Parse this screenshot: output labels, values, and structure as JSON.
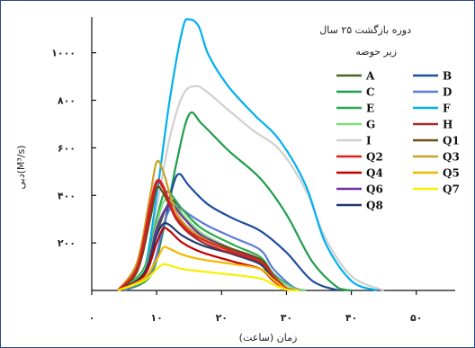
{
  "chart_data": {
    "type": "line",
    "title": "دوره بازگشت ۲۵ سال",
    "legend_title": "زیر حوضه",
    "xlabel": "زمان (ساعت)",
    "ylabel": "دبی(M³/s)",
    "xlim": [
      0,
      56
    ],
    "ylim": [
      0,
      1150
    ],
    "x_ticks": [
      0,
      10,
      20,
      30,
      40,
      50
    ],
    "x_tick_labels": [
      "۰",
      "۱۰",
      "۲۰",
      "۳۰",
      "۴۰",
      "۵۰"
    ],
    "y_ticks": [
      200,
      400,
      600,
      800,
      1000
    ],
    "y_tick_labels": [
      "۲۰۰",
      "۴۰۰",
      "۶۰۰",
      "۸۰۰",
      "۱۰۰۰"
    ],
    "grid": false,
    "legend_position": "top-right",
    "series": [
      {
        "name": "A",
        "color": "#4f6228",
        "points": [
          [
            4,
            0
          ],
          [
            8,
            70
          ],
          [
            10,
            240
          ],
          [
            11.5,
            350
          ],
          [
            12.5,
            380
          ],
          [
            14,
            320
          ],
          [
            17,
            230
          ],
          [
            22,
            160
          ],
          [
            26,
            110
          ],
          [
            27.5,
            60
          ],
          [
            30,
            10
          ],
          [
            32,
            0
          ]
        ]
      },
      {
        "name": "B",
        "color": "#1f4e9c",
        "points": [
          [
            5,
            0
          ],
          [
            9,
            80
          ],
          [
            11,
            260
          ],
          [
            12.5,
            440
          ],
          [
            13.5,
            490
          ],
          [
            15,
            440
          ],
          [
            18,
            360
          ],
          [
            22,
            300
          ],
          [
            26,
            250
          ],
          [
            30,
            160
          ],
          [
            34,
            40
          ],
          [
            38,
            0
          ]
        ]
      },
      {
        "name": "C",
        "color": "#1e9e4a",
        "points": [
          [
            5,
            0
          ],
          [
            9,
            60
          ],
          [
            11,
            250
          ],
          [
            13,
            530
          ],
          [
            15,
            740
          ],
          [
            17,
            700
          ],
          [
            21,
            590
          ],
          [
            26,
            470
          ],
          [
            30,
            320
          ],
          [
            34,
            120
          ],
          [
            38,
            10
          ],
          [
            40,
            0
          ]
        ]
      },
      {
        "name": "D",
        "color": "#5b7bd5",
        "points": [
          [
            5,
            0
          ],
          [
            9,
            70
          ],
          [
            11,
            270
          ],
          [
            12,
            340
          ],
          [
            13,
            360
          ],
          [
            15,
            320
          ],
          [
            18,
            270
          ],
          [
            22,
            220
          ],
          [
            26,
            170
          ],
          [
            28,
            90
          ],
          [
            31,
            15
          ],
          [
            33,
            0
          ]
        ]
      },
      {
        "name": "E",
        "color": "#2fa84f",
        "points": [
          [
            4,
            0
          ],
          [
            8,
            90
          ],
          [
            10,
            300
          ],
          [
            11,
            400
          ],
          [
            12,
            410
          ],
          [
            14,
            340
          ],
          [
            17,
            260
          ],
          [
            22,
            190
          ],
          [
            26,
            140
          ],
          [
            28,
            70
          ],
          [
            31,
            10
          ],
          [
            33,
            0
          ]
        ]
      },
      {
        "name": "F",
        "color": "#00b0f0",
        "points": [
          [
            5,
            0
          ],
          [
            8,
            80
          ],
          [
            10,
            400
          ],
          [
            12,
            800
          ],
          [
            14,
            1100
          ],
          [
            15,
            1140
          ],
          [
            16.5,
            1110
          ],
          [
            18,
            990
          ],
          [
            21,
            860
          ],
          [
            25,
            740
          ],
          [
            29,
            630
          ],
          [
            33,
            440
          ],
          [
            36,
            200
          ],
          [
            40,
            40
          ],
          [
            44,
            0
          ]
        ]
      },
      {
        "name": "G",
        "color": "#7cdc7c",
        "points": [
          [
            4,
            0
          ],
          [
            8,
            80
          ],
          [
            10,
            280
          ],
          [
            11,
            370
          ],
          [
            12,
            380
          ],
          [
            14,
            320
          ],
          [
            17,
            240
          ],
          [
            22,
            170
          ],
          [
            26,
            125
          ],
          [
            28,
            60
          ],
          [
            31,
            10
          ],
          [
            33,
            0
          ]
        ]
      },
      {
        "name": "H",
        "color": "#a52a2a",
        "points": [
          [
            4,
            0
          ],
          [
            7,
            90
          ],
          [
            9,
            330
          ],
          [
            10,
            450
          ],
          [
            11,
            430
          ],
          [
            13,
            300
          ],
          [
            16,
            220
          ],
          [
            20,
            170
          ],
          [
            26,
            120
          ],
          [
            28,
            60
          ],
          [
            30,
            10
          ],
          [
            32,
            0
          ]
        ]
      },
      {
        "name": "I",
        "color": "#d0d0d0",
        "points": [
          [
            5,
            0
          ],
          [
            8,
            80
          ],
          [
            10,
            350
          ],
          [
            12,
            640
          ],
          [
            14,
            820
          ],
          [
            16,
            860
          ],
          [
            18,
            830
          ],
          [
            21,
            760
          ],
          [
            25,
            670
          ],
          [
            29,
            590
          ],
          [
            33,
            420
          ],
          [
            36,
            220
          ],
          [
            40,
            60
          ],
          [
            45,
            0
          ]
        ]
      },
      {
        "name": "Q1",
        "color": "#6b4e12",
        "points": [
          [
            4,
            0
          ],
          [
            7,
            80
          ],
          [
            9,
            300
          ],
          [
            10,
            430
          ],
          [
            11,
            410
          ],
          [
            13,
            310
          ],
          [
            16,
            230
          ],
          [
            21,
            180
          ],
          [
            26,
            130
          ],
          [
            28,
            60
          ],
          [
            30,
            10
          ],
          [
            32,
            0
          ]
        ]
      },
      {
        "name": "Q2",
        "color": "#e02020",
        "points": [
          [
            4,
            0
          ],
          [
            7,
            100
          ],
          [
            9,
            360
          ],
          [
            10,
            460
          ],
          [
            11,
            440
          ],
          [
            13,
            310
          ],
          [
            16,
            230
          ],
          [
            21,
            170
          ],
          [
            26,
            120
          ],
          [
            28,
            60
          ],
          [
            30,
            10
          ],
          [
            32,
            0
          ]
        ]
      },
      {
        "name": "Q3",
        "color": "#c9a227",
        "points": [
          [
            4,
            0
          ],
          [
            7,
            120
          ],
          [
            9,
            400
          ],
          [
            10,
            540
          ],
          [
            11,
            500
          ],
          [
            13,
            330
          ],
          [
            16,
            240
          ],
          [
            21,
            170
          ],
          [
            26,
            120
          ],
          [
            28,
            60
          ],
          [
            30,
            10
          ],
          [
            32,
            0
          ]
        ]
      },
      {
        "name": "Q4",
        "color": "#c00000",
        "points": [
          [
            4,
            0
          ],
          [
            8,
            60
          ],
          [
            10,
            200
          ],
          [
            11,
            260
          ],
          [
            12,
            250
          ],
          [
            14,
            200
          ],
          [
            17,
            160
          ],
          [
            22,
            120
          ],
          [
            26,
            90
          ],
          [
            28,
            40
          ],
          [
            30,
            5
          ],
          [
            32,
            0
          ]
        ]
      },
      {
        "name": "Q5",
        "color": "#f3b700",
        "points": [
          [
            4,
            0
          ],
          [
            8,
            50
          ],
          [
            10,
            130
          ],
          [
            11,
            180
          ],
          [
            12,
            175
          ],
          [
            14,
            150
          ],
          [
            17,
            130
          ],
          [
            22,
            110
          ],
          [
            26,
            90
          ],
          [
            28,
            45
          ],
          [
            30,
            5
          ],
          [
            32,
            0
          ]
        ]
      },
      {
        "name": "Q6",
        "color": "#7030a0",
        "points": [
          [
            4,
            0
          ],
          [
            8,
            70
          ],
          [
            10,
            260
          ],
          [
            11.5,
            350
          ],
          [
            12.5,
            360
          ],
          [
            14,
            310
          ],
          [
            17,
            230
          ],
          [
            22,
            170
          ],
          [
            26,
            125
          ],
          [
            28,
            60
          ],
          [
            30,
            10
          ],
          [
            32,
            0
          ]
        ]
      },
      {
        "name": "Q7",
        "color": "#f5f000",
        "points": [
          [
            4,
            0
          ],
          [
            8,
            40
          ],
          [
            10,
            90
          ],
          [
            11,
            110
          ],
          [
            12,
            105
          ],
          [
            14,
            90
          ],
          [
            17,
            80
          ],
          [
            22,
            65
          ],
          [
            26,
            50
          ],
          [
            28,
            25
          ],
          [
            30,
            3
          ],
          [
            32,
            0
          ]
        ]
      },
      {
        "name": "Q8",
        "color": "#1f3a6e",
        "points": [
          [
            4,
            0
          ],
          [
            8,
            70
          ],
          [
            10,
            230
          ],
          [
            11,
            280
          ],
          [
            12,
            275
          ],
          [
            14,
            230
          ],
          [
            17,
            190
          ],
          [
            22,
            150
          ],
          [
            26,
            110
          ],
          [
            28,
            55
          ],
          [
            30,
            8
          ],
          [
            32,
            0
          ]
        ]
      }
    ]
  }
}
